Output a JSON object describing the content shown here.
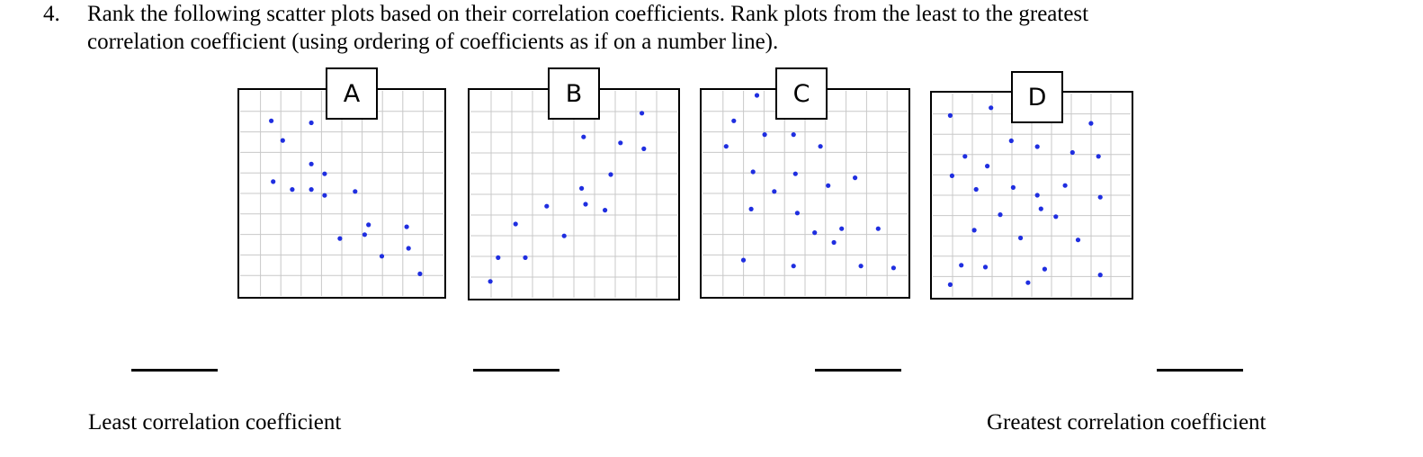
{
  "question": {
    "number": "4.",
    "lines": [
      "Rank the following scatter plots based on their correlation coefficients. Rank plots from the least to the greatest",
      "correlation coefficient (using ordering of coefficients as if on a number line)."
    ]
  },
  "colors": {
    "point": "#1f2ee0",
    "grid": "#c8c8c8",
    "frame": "#000000"
  },
  "plots": [
    {
      "label": "A",
      "chart_data": {
        "type": "scatter",
        "grid": true,
        "xlim": [
          0,
          10
        ],
        "ylim": [
          0,
          10
        ],
        "points": [
          [
            1.3,
            8.7
          ],
          [
            3.4,
            8.6
          ],
          [
            1.9,
            7.7
          ],
          [
            3.4,
            6.5
          ],
          [
            4.1,
            6.0
          ],
          [
            1.4,
            5.6
          ],
          [
            2.4,
            5.2
          ],
          [
            3.4,
            5.2
          ],
          [
            4.1,
            4.9
          ],
          [
            5.7,
            5.1
          ],
          [
            6.4,
            3.4
          ],
          [
            6.2,
            2.9
          ],
          [
            4.9,
            2.7
          ],
          [
            8.4,
            3.3
          ],
          [
            8.5,
            2.2
          ],
          [
            7.1,
            1.8
          ],
          [
            9.1,
            0.9
          ]
        ]
      }
    },
    {
      "label": "B",
      "chart_data": {
        "type": "scatter",
        "grid": true,
        "xlim": [
          0,
          10
        ],
        "ylim": [
          0,
          10
        ],
        "points": [
          [
            8.5,
            9.1
          ],
          [
            5.5,
            7.9
          ],
          [
            7.4,
            7.6
          ],
          [
            8.6,
            7.3
          ],
          [
            6.9,
            6.0
          ],
          [
            5.4,
            5.3
          ],
          [
            3.6,
            4.4
          ],
          [
            5.6,
            4.5
          ],
          [
            6.6,
            4.2
          ],
          [
            2.0,
            3.5
          ],
          [
            4.5,
            2.9
          ],
          [
            1.1,
            1.8
          ],
          [
            2.5,
            1.8
          ],
          [
            0.7,
            0.6
          ]
        ]
      }
    },
    {
      "label": "C",
      "chart_data": {
        "type": "scatter",
        "grid": true,
        "xlim": [
          0,
          10
        ],
        "ylim": [
          0,
          10
        ],
        "points": [
          [
            2.5,
            10.0
          ],
          [
            1.3,
            8.7
          ],
          [
            2.9,
            8.0
          ],
          [
            4.4,
            8.0
          ],
          [
            0.9,
            7.4
          ],
          [
            5.8,
            7.4
          ],
          [
            2.3,
            6.1
          ],
          [
            4.5,
            6.0
          ],
          [
            7.6,
            5.8
          ],
          [
            3.4,
            5.1
          ],
          [
            6.2,
            5.4
          ],
          [
            2.2,
            4.2
          ],
          [
            4.6,
            4.0
          ],
          [
            5.5,
            3.0
          ],
          [
            6.9,
            3.2
          ],
          [
            8.8,
            3.2
          ],
          [
            6.5,
            2.5
          ],
          [
            1.8,
            1.6
          ],
          [
            4.4,
            1.3
          ],
          [
            7.9,
            1.3
          ],
          [
            9.6,
            1.2
          ]
        ]
      }
    },
    {
      "label": "D",
      "chart_data": {
        "type": "scatter",
        "grid": true,
        "xlim": [
          0,
          10
        ],
        "ylim": [
          0,
          10
        ],
        "points": [
          [
            0.6,
            9.1
          ],
          [
            2.8,
            9.5
          ],
          [
            8.2,
            8.7
          ],
          [
            3.9,
            7.8
          ],
          [
            5.3,
            7.5
          ],
          [
            7.2,
            7.2
          ],
          [
            8.6,
            7.0
          ],
          [
            1.4,
            7.0
          ],
          [
            2.6,
            6.5
          ],
          [
            2.0,
            5.3
          ],
          [
            4.0,
            5.4
          ],
          [
            6.8,
            5.5
          ],
          [
            5.3,
            5.0
          ],
          [
            8.7,
            4.9
          ],
          [
            5.5,
            4.3
          ],
          [
            3.3,
            4.0
          ],
          [
            6.3,
            3.9
          ],
          [
            0.7,
            6.0
          ],
          [
            1.9,
            3.2
          ],
          [
            4.4,
            2.8
          ],
          [
            7.5,
            2.7
          ],
          [
            1.2,
            1.4
          ],
          [
            2.5,
            1.3
          ],
          [
            5.7,
            1.2
          ],
          [
            8.7,
            0.9
          ],
          [
            4.8,
            0.5
          ],
          [
            0.6,
            0.4
          ]
        ]
      }
    }
  ],
  "footer": {
    "least_label": "Least correlation coefficient",
    "greatest_label": "Greatest correlation coefficient"
  }
}
